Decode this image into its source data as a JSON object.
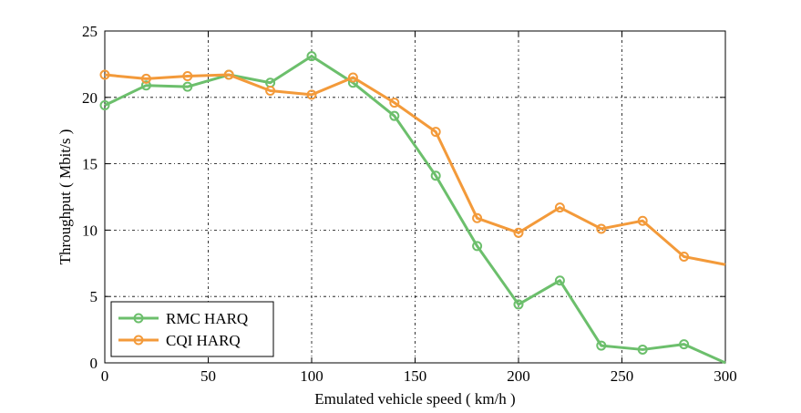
{
  "chart_data": {
    "type": "line",
    "title": "",
    "xlabel": "Emulated vehicle speed ( km/h )",
    "ylabel": "Throughput ( Mbit/s )",
    "xlim": [
      0,
      300
    ],
    "ylim": [
      0,
      25
    ],
    "x_ticks": [
      "0",
      "50",
      "100",
      "150",
      "200",
      "250",
      "300"
    ],
    "y_ticks": [
      "0",
      "5",
      "10",
      "15",
      "20",
      "25"
    ],
    "grid": "dashed vertical and horizontal at major ticks",
    "legend_position": "bottom-left",
    "x": [
      0,
      20,
      40,
      60,
      80,
      100,
      120,
      140,
      160,
      180,
      200,
      220,
      240,
      260,
      280,
      300
    ],
    "series": [
      {
        "name": "RMC HARQ",
        "color": "#6cbf6c",
        "values": [
          19.4,
          20.9,
          20.8,
          21.7,
          21.1,
          23.1,
          21.1,
          18.6,
          14.1,
          8.8,
          4.4,
          6.2,
          1.3,
          1.0,
          1.4,
          0.0
        ]
      },
      {
        "name": "CQI HARQ",
        "color": "#f39a3a",
        "values": [
          21.7,
          21.4,
          21.6,
          21.7,
          20.5,
          20.2,
          21.5,
          19.6,
          17.4,
          10.9,
          9.8,
          11.7,
          10.1,
          10.7,
          8.0,
          7.4
        ]
      }
    ]
  }
}
